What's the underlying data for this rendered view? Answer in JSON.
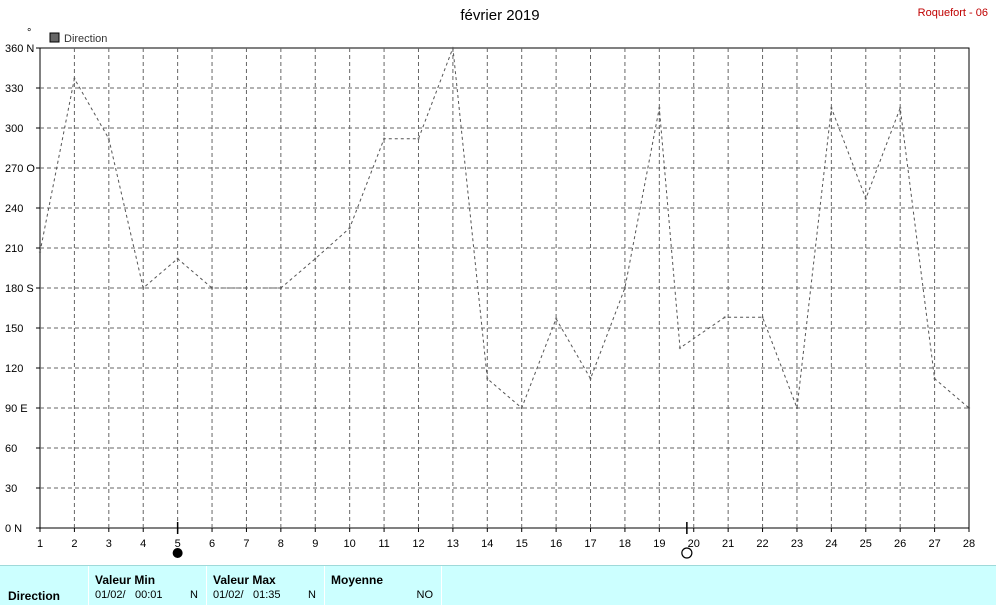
{
  "chart_data": {
    "type": "line",
    "title": "février 2019",
    "station": "Roquefort - 06",
    "unit_mark": "°",
    "legend": [
      "Direction"
    ],
    "ylim": [
      0,
      360
    ],
    "y_ticks": [
      {
        "value": 360,
        "label": "360 N"
      },
      {
        "value": 330,
        "label": "330"
      },
      {
        "value": 300,
        "label": "300"
      },
      {
        "value": 270,
        "label": "270 O"
      },
      {
        "value": 240,
        "label": "240"
      },
      {
        "value": 210,
        "label": "210"
      },
      {
        "value": 180,
        "label": "180 S"
      },
      {
        "value": 150,
        "label": "150"
      },
      {
        "value": 120,
        "label": "120"
      },
      {
        "value": 90,
        "label": "90  E"
      },
      {
        "value": 60,
        "label": "60"
      },
      {
        "value": 30,
        "label": "30"
      },
      {
        "value": 0,
        "label": "0   N"
      }
    ],
    "x_ticks": [
      1,
      2,
      3,
      4,
      5,
      6,
      7,
      8,
      9,
      10,
      11,
      12,
      13,
      14,
      15,
      16,
      17,
      18,
      19,
      20,
      21,
      22,
      23,
      24,
      25,
      26,
      27,
      28
    ],
    "xlim": [
      1,
      28
    ],
    "grid": true,
    "legend_position": "top-left",
    "moon_phases": [
      {
        "day": 5,
        "phase": "new"
      },
      {
        "day": 19.8,
        "phase": "full"
      }
    ],
    "series": [
      {
        "name": "Direction",
        "color": "#555555",
        "style": "dashed",
        "points": [
          [
            1,
            207
          ],
          [
            2,
            337
          ],
          [
            3,
            292
          ],
          [
            4,
            180
          ],
          [
            5,
            202
          ],
          [
            6,
            180
          ],
          [
            7,
            180
          ],
          [
            8,
            180
          ],
          [
            9,
            202
          ],
          [
            10,
            225
          ],
          [
            11,
            292
          ],
          [
            12,
            292
          ],
          [
            13,
            360
          ],
          [
            14,
            112
          ],
          [
            15,
            90
          ],
          [
            16,
            157
          ],
          [
            17,
            112
          ],
          [
            18,
            180
          ],
          [
            19,
            315
          ],
          [
            19.6,
            135
          ],
          [
            20.9,
            158
          ],
          [
            22,
            158
          ],
          [
            23,
            90
          ],
          [
            24,
            315
          ],
          [
            25,
            247
          ],
          [
            26,
            315
          ],
          [
            27,
            112
          ],
          [
            28,
            90
          ]
        ]
      }
    ]
  },
  "footer": {
    "row_label": "Direction",
    "min": {
      "header": "Valeur Min",
      "date": "01/02/",
      "time": "00:01",
      "value": "N"
    },
    "max": {
      "header": "Valeur Max",
      "date": "01/02/",
      "time": "01:35",
      "value": "N"
    },
    "avg": {
      "header": "Moyenne",
      "value": "NO"
    }
  }
}
